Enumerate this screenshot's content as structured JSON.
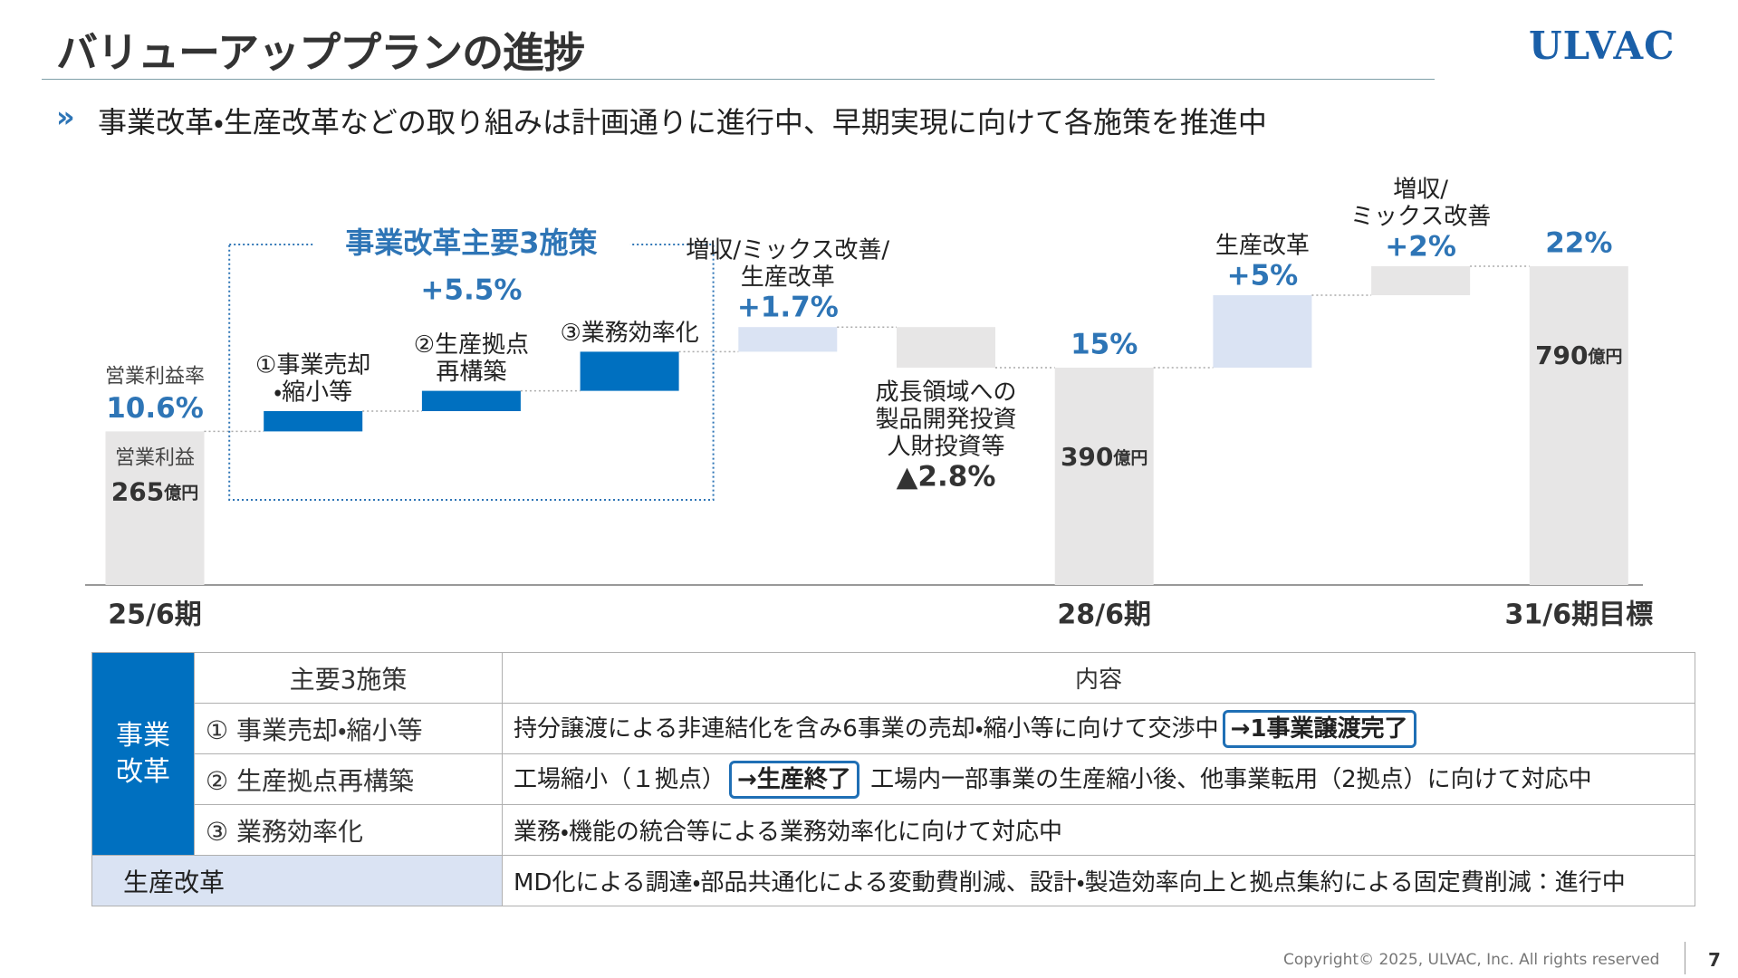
{
  "header": {
    "title": "バリューアッププランの進捗",
    "logo": "ULVAC",
    "bullet": "»",
    "subtitle": "事業改革・生産改革などの取り組みは計画通りに進行中、早期実現に向けて各施策を推進中"
  },
  "chart_data": {
    "type": "waterfall",
    "bars": [
      {
        "category": "25/6期",
        "caption": "営業利益率",
        "value": 10.6,
        "value_label": "10.6%",
        "inner_label": "営業利益",
        "profit": 265,
        "unit": "億円",
        "color": "#e7e6e6"
      },
      {
        "title": "事業改革主要3施策",
        "value": 5.5,
        "value_label": "+5.5%",
        "steps": [
          {
            "lines": [
              "①事業売却",
              "・縮小等"
            ],
            "value": 1.4,
            "color": "#0070c0"
          },
          {
            "lines": [
              "②生産拠点",
              "再構築"
            ],
            "value": 1.4,
            "color": "#0070c0"
          },
          {
            "lines": [
              "③業務効率化"
            ],
            "value": 2.7,
            "color": "#0070c0"
          }
        ]
      },
      {
        "lines": [
          "増収/ミックス改善/",
          "生産改革"
        ],
        "value": 1.7,
        "value_label": "+1.7%",
        "color": "#dae3f3"
      },
      {
        "lines": [
          "成長領域への",
          "製品開発投資",
          "人財投資等"
        ],
        "value": -2.8,
        "value_label": "▲2.8%",
        "color": "#e7e6e6"
      },
      {
        "category": "28/6期",
        "value": 15,
        "value_label": "15%",
        "profit": 390,
        "unit": "億円",
        "color": "#e7e6e6"
      },
      {
        "lines": [
          "生産改革"
        ],
        "value": 5,
        "value_label": "+5%",
        "color": "#dae3f3"
      },
      {
        "lines": [
          "増収/",
          "ミックス改善"
        ],
        "value": 2,
        "value_label": "+2%",
        "color": "#e7e6e6"
      },
      {
        "category": "31/6期目標",
        "value": 22,
        "value_label": "22%",
        "profit": 790,
        "unit": "億円",
        "color": "#e7e6e6"
      }
    ]
  },
  "table": {
    "side_header": [
      "事業",
      "改革"
    ],
    "columns": [
      "主要3施策",
      "内容"
    ],
    "rows": [
      {
        "item": "① 事業売却・縮小等",
        "content": "持分譲渡による非連結化を含み6事業の売却・縮小等に向けて交渉中",
        "badge": "→1事業譲渡完了"
      },
      {
        "item": "② 生産拠点再構築",
        "content": "工場縮小（１拠点）",
        "badge": "→生産終了",
        "after": "工場内一部事業の生産縮小後、他事業転用（2拠点）に向けて対応中"
      },
      {
        "item": "③ 業務効率化",
        "content": "業務・機能の統合等による業務効率化に向けて対応中"
      }
    ],
    "footer_row": {
      "item": "生産改革",
      "content": "MD化による調達・部品共通化による変動費削減、設計・製造効率向上と拠点集約による固定費削減：進行中"
    }
  },
  "footer": {
    "copyright": "Copyright© 2025, ULVAC, Inc. All rights reserved",
    "page": "7"
  }
}
